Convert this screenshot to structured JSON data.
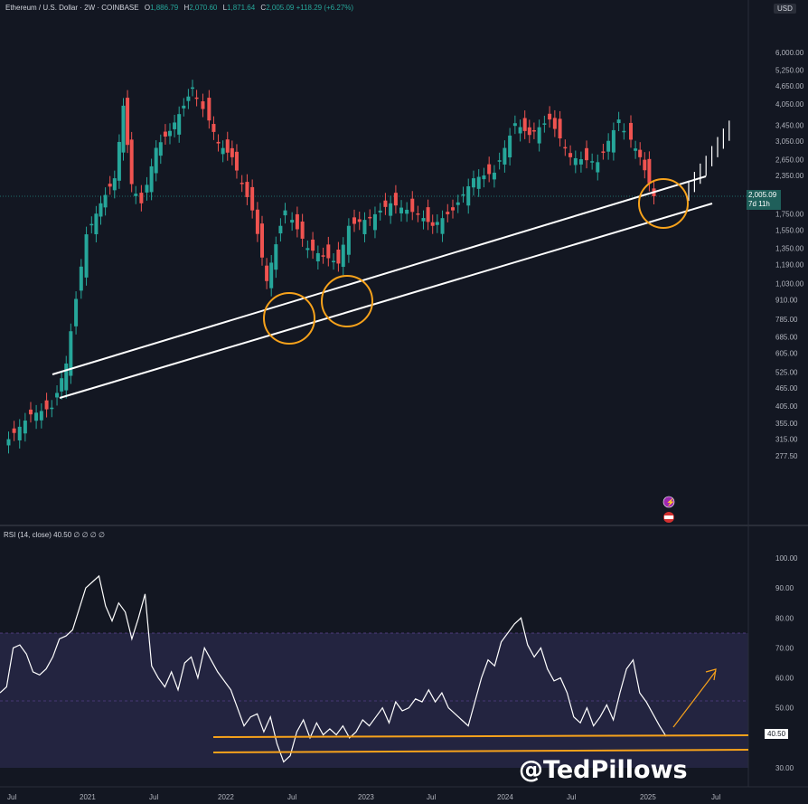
{
  "header": {
    "symbol": "Ethereum / U.S. Dollar · 2W · COINBASE",
    "o": "1,886.79",
    "h": "2,070.60",
    "l": "1,871.64",
    "c": "2,005.09",
    "chg": "+118.29 (+6.27%)"
  },
  "rsi_header": "RSI (14, close)  40.50  ∅ ∅ ∅ ∅",
  "currency_tag": "USD",
  "price_label": {
    "value": "2,005.09",
    "countdown": "7d 11h"
  },
  "rsi_label": "40.50",
  "watermark": "@TedPillows",
  "colors": {
    "up": "#26a69a",
    "down": "#ef5350",
    "bg": "#131722",
    "line": "#ffffff",
    "circle": "#f7a21b",
    "rsi_band": "#232440"
  },
  "chart_data": [
    {
      "type": "candlestick",
      "y_scale": "log",
      "price_axis": [
        "6,000.00",
        "5,250.00",
        "4,650.00",
        "4,050.00",
        "3,450.00",
        "3,050.00",
        "2,650.00",
        "2,350.00",
        "2,005.09",
        "1,750.00",
        "1,550.00",
        "1,350.00",
        "1,190.00",
        "1,030.00",
        "910.00",
        "785.00",
        "685.00",
        "605.00",
        "525.00",
        "465.00",
        "405.00",
        "355.00",
        "315.00",
        "277.50"
      ],
      "x_ticks": [
        "Jul",
        "2021",
        "Jul",
        "2022",
        "Jul",
        "2023",
        "Jul",
        "2024",
        "Jul",
        "2025",
        "Jul"
      ],
      "close_path": [
        [
          2020.5,
          300
        ],
        [
          2020.7,
          380
        ],
        [
          2020.85,
          400
        ],
        [
          2020.95,
          560
        ],
        [
          2021.1,
          1500
        ],
        [
          2021.2,
          1900
        ],
        [
          2021.3,
          2300
        ],
        [
          2021.36,
          4000
        ],
        [
          2021.42,
          2200
        ],
        [
          2021.5,
          1900
        ],
        [
          2021.6,
          2900
        ],
        [
          2021.7,
          3300
        ],
        [
          2021.8,
          4000
        ],
        [
          2021.86,
          4600
        ],
        [
          2021.95,
          3900
        ],
        [
          2022.05,
          3000
        ],
        [
          2022.15,
          2700
        ],
        [
          2022.3,
          1800
        ],
        [
          2022.4,
          1050
        ],
        [
          2022.5,
          1600
        ],
        [
          2022.55,
          1800
        ],
        [
          2022.7,
          1350
        ],
        [
          2022.85,
          1250
        ],
        [
          2022.92,
          1200
        ],
        [
          2023.0,
          1600
        ],
        [
          2023.15,
          1700
        ],
        [
          2023.3,
          1900
        ],
        [
          2023.5,
          1750
        ],
        [
          2023.6,
          1600
        ],
        [
          2023.75,
          1800
        ],
        [
          2023.9,
          2300
        ],
        [
          2024.05,
          2400
        ],
        [
          2024.2,
          3500
        ],
        [
          2024.3,
          3200
        ],
        [
          2024.45,
          3600
        ],
        [
          2024.6,
          2700
        ],
        [
          2024.8,
          2600
        ],
        [
          2024.95,
          3600
        ],
        [
          2025.0,
          3300
        ],
        [
          2025.1,
          2700
        ],
        [
          2025.2,
          2005
        ]
      ],
      "projection": [
        2150,
        2300,
        2450,
        2600,
        2800,
        3000,
        3200,
        3400
      ],
      "trendlines": [
        {
          "name": "upper",
          "from": [
            2020.95,
            640
          ],
          "to": [
            2025.35,
            2300
          ]
        },
        {
          "name": "lower",
          "from": [
            2020.95,
            560
          ],
          "to": [
            2025.35,
            1850
          ]
        }
      ],
      "highlight_circles": [
        [
          2022.42,
          890
        ],
        [
          2022.88,
          970
        ],
        [
          2025.2,
          1950
        ]
      ]
    },
    {
      "type": "line",
      "name": "RSI (14, close)",
      "y_axis": [
        "100.00",
        "90.00",
        "80.00",
        "70.00",
        "60.00",
        "50.00",
        "40.50",
        "30.00"
      ],
      "ylim": [
        30,
        100
      ],
      "band": [
        30,
        70
      ],
      "values": [
        55,
        57,
        70,
        71,
        68,
        62,
        61,
        63,
        67,
        73,
        74,
        76,
        83,
        90,
        92,
        94,
        84,
        79,
        85,
        82,
        73,
        80,
        88,
        64,
        60,
        57,
        62,
        56,
        65,
        67,
        60,
        70,
        66,
        62,
        59,
        56,
        50,
        44,
        47,
        48,
        42,
        47,
        38,
        32,
        34,
        42,
        46,
        40,
        45,
        41,
        43,
        41,
        44,
        40,
        42,
        46,
        44,
        47,
        50,
        45,
        52,
        49,
        50,
        53,
        52,
        56,
        52,
        55,
        50,
        48,
        46,
        44,
        52,
        60,
        66,
        64,
        72,
        75,
        78,
        80,
        71,
        67,
        70,
        63,
        59,
        60,
        55,
        47,
        45,
        50,
        44,
        47,
        51,
        46,
        55,
        63,
        66,
        55,
        52,
        48,
        44,
        40.5
      ],
      "support_lines": [
        41,
        38.5
      ],
      "projection_arrow": {
        "from": 43,
        "to": 60
      }
    }
  ]
}
